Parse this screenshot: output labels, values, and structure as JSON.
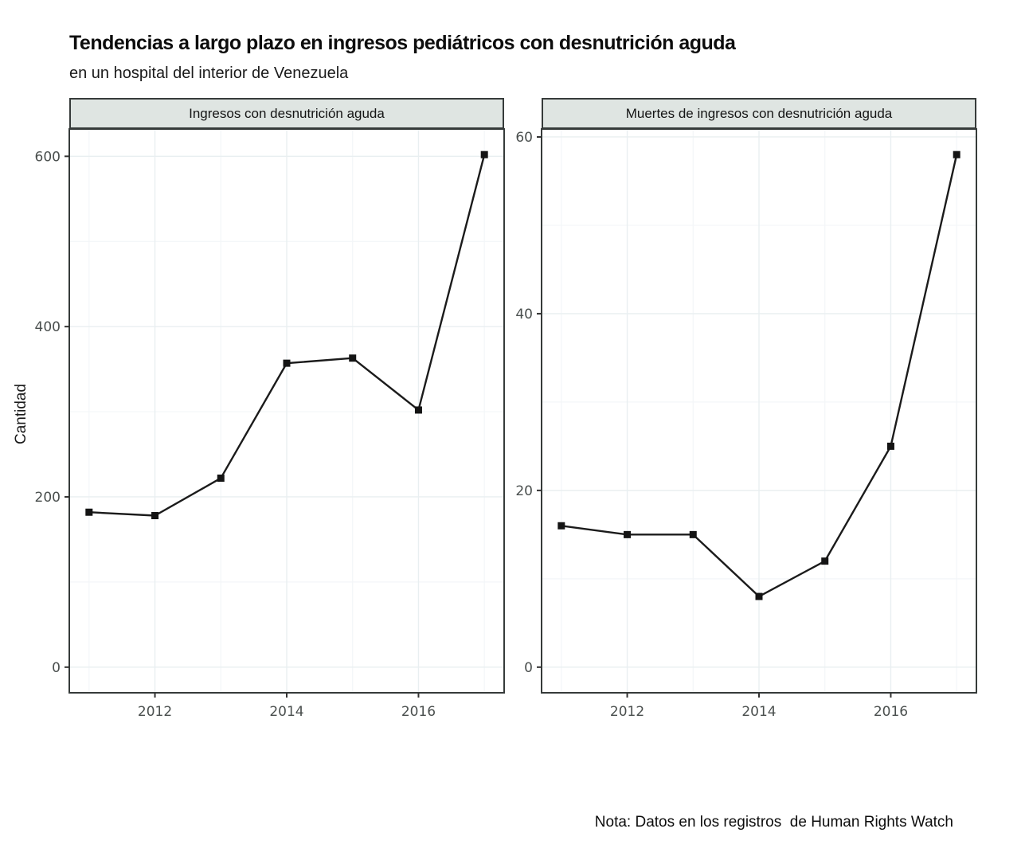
{
  "header": {
    "title": "Tendencias a largo plazo en ingresos pediátricos con desnutrición aguda",
    "subtitle": "en un hospital del interior de Venezuela"
  },
  "axis": {
    "ylabel": "Cantidad"
  },
  "note": "Nota: Datos en los registros  de Human Rights Watch",
  "colors": {
    "strip_bg": "#dfe5e2",
    "panel_border": "#363b3a",
    "grid_major": "#e9eff1",
    "grid_minor": "#f3f6f8",
    "line": "#1b1b1b",
    "marker": "#141414",
    "axis_text": "#4a4f4e",
    "tick_mark": "#333333"
  },
  "chart_data": [
    {
      "type": "line",
      "panel": "Ingresos con desnutrición aguda",
      "xlabel": "",
      "ylabel": "Cantidad",
      "x": [
        2011,
        2012,
        2013,
        2014,
        2015,
        2016,
        2017
      ],
      "values": [
        182,
        178,
        222,
        357,
        363,
        302,
        602
      ],
      "xlim": [
        2010.7,
        2017.3
      ],
      "ylim": [
        -30.1,
        632.1
      ],
      "xticks": [
        2012,
        2014,
        2016
      ],
      "xticks_minor": [
        2011,
        2013,
        2015,
        2017
      ],
      "yticks": [
        0,
        200,
        400,
        600
      ],
      "yticks_minor": [
        100,
        300,
        500
      ],
      "grid": "on",
      "legend": "none",
      "marker": "square"
    },
    {
      "type": "line",
      "panel": "Muertes de ingresos con desnutrición aguda",
      "xlabel": "",
      "ylabel": "Cantidad",
      "x": [
        2011,
        2012,
        2013,
        2014,
        2015,
        2016,
        2017
      ],
      "values": [
        16,
        15,
        15,
        8,
        12,
        25,
        58
      ],
      "xlim": [
        2010.7,
        2017.3
      ],
      "ylim": [
        -2.9,
        60.9
      ],
      "xticks": [
        2012,
        2014,
        2016
      ],
      "xticks_minor": [
        2011,
        2013,
        2015,
        2017
      ],
      "yticks": [
        0,
        20,
        40,
        60
      ],
      "yticks_minor": [
        10,
        30,
        50
      ],
      "grid": "on",
      "legend": "none",
      "marker": "square"
    }
  ]
}
